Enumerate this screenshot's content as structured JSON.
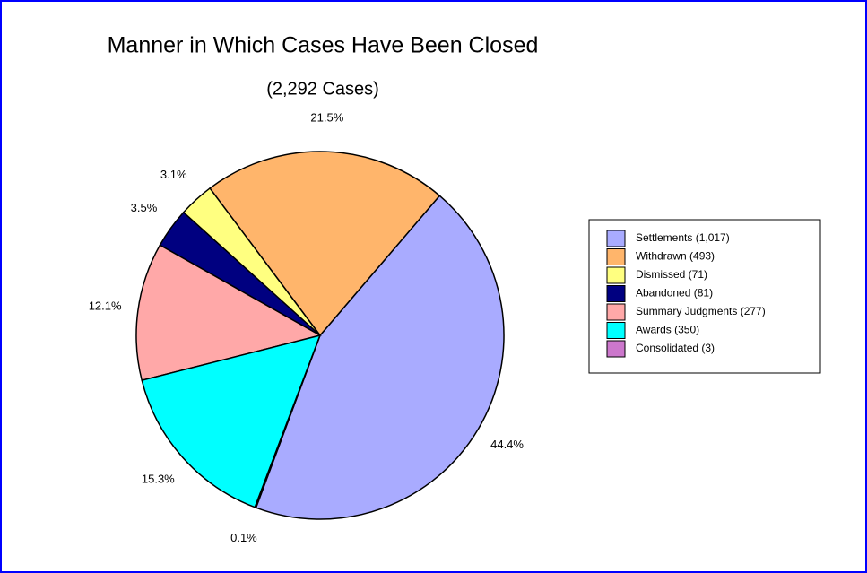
{
  "chart_data": {
    "type": "pie",
    "title": "Manner in Which Cases Have Been Closed",
    "subtitle": "(2,292 Cases)",
    "categories": [
      "Settlements (1,017)",
      "Withdrawn (493)",
      "Dismissed (71)",
      "Abandoned (81)",
      "Summary Judgments (277)",
      "Awards (350)",
      "Consolidated (3)"
    ],
    "values": [
      44.4,
      21.5,
      3.1,
      3.5,
      12.1,
      15.3,
      0.1
    ],
    "value_labels": [
      "44.4%",
      "21.5%",
      "3.1%",
      "3.5%",
      "12.1%",
      "15.3%",
      "0.1%"
    ],
    "colors": [
      "#a9abff",
      "#ffb56b",
      "#ffff80",
      "#000080",
      "#ffa8a8",
      "#00ffff",
      "#cc77cc"
    ],
    "legend": "right"
  }
}
